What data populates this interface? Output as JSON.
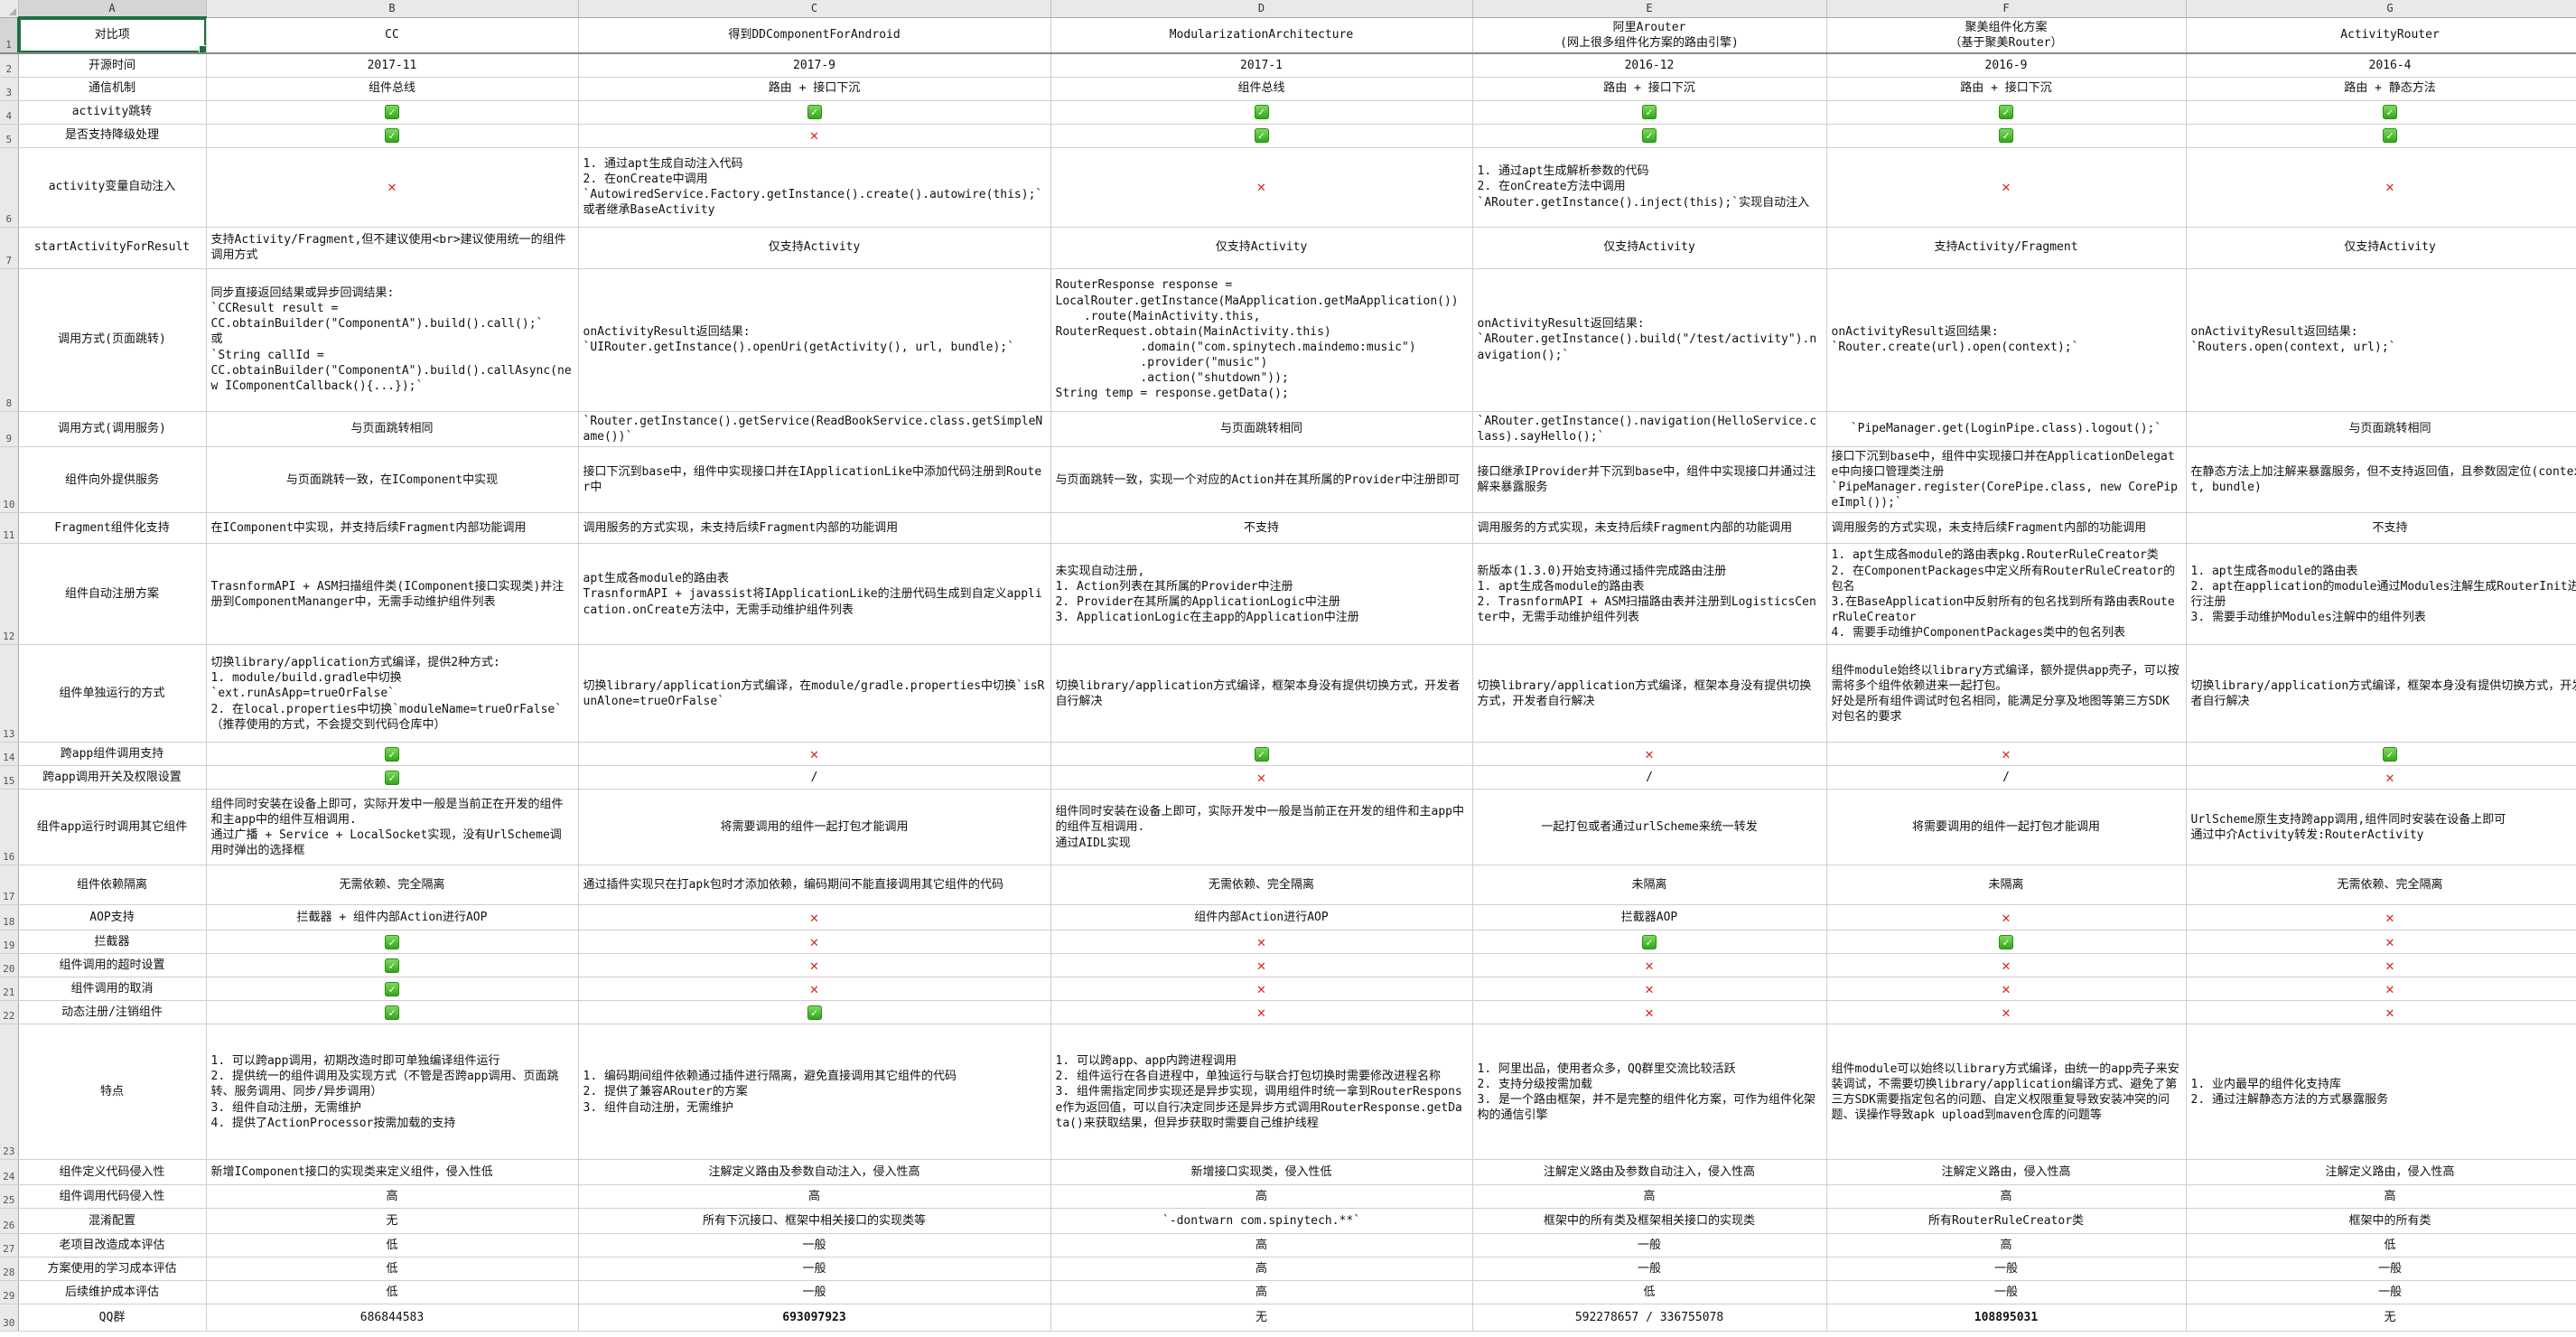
{
  "colors": {
    "check_green": "#2fa316",
    "cross_red": "#d42a1e",
    "selection_green": "#1e7145"
  },
  "sheet": {
    "selected_cell": "A1",
    "col_letters": [
      "A",
      "B",
      "C",
      "D",
      "E",
      "F",
      "G"
    ],
    "rows": [
      {
        "n": 1,
        "label": "对比项",
        "cells": [
          {
            "t": "CC"
          },
          {
            "t": "得到DDComponentForAndroid"
          },
          {
            "t": "ModularizationArchitecture"
          },
          {
            "t": "阿里Arouter\n(网上很多组件化方案的路由引擎)"
          },
          {
            "t": "聚美组件化方案\n（基于聚美Router）"
          },
          {
            "t": "ActivityRouter"
          }
        ]
      },
      {
        "n": 2,
        "label": "开源时间",
        "cells": [
          {
            "t": "2017-11"
          },
          {
            "t": "2017-9"
          },
          {
            "t": "2017-1"
          },
          {
            "t": "2016-12"
          },
          {
            "t": "2016-9"
          },
          {
            "t": "2016-4"
          }
        ]
      },
      {
        "n": 3,
        "label": "通信机制",
        "cells": [
          {
            "t": "组件总线"
          },
          {
            "t": "路由 + 接口下沉"
          },
          {
            "t": "组件总线"
          },
          {
            "t": "路由 + 接口下沉"
          },
          {
            "t": "路由 + 接口下沉"
          },
          {
            "t": "路由 + 静态方法"
          }
        ]
      },
      {
        "n": 4,
        "label": "activity跳转",
        "cells": [
          {
            "i": "check"
          },
          {
            "i": "check"
          },
          {
            "i": "check"
          },
          {
            "i": "check"
          },
          {
            "i": "check"
          },
          {
            "i": "check"
          }
        ]
      },
      {
        "n": 5,
        "label": "是否支持降级处理",
        "cells": [
          {
            "i": "check"
          },
          {
            "i": "cross"
          },
          {
            "i": "check"
          },
          {
            "i": "check"
          },
          {
            "i": "check"
          },
          {
            "i": "check"
          }
        ]
      },
      {
        "n": 6,
        "label": "activity变量自动注入",
        "cells": [
          {
            "i": "cross"
          },
          {
            "t": "1. 通过apt生成自动注入代码\n2. 在onCreate中调用\n`AutowiredService.Factory.getInstance().create().autowire(this);`或者继承BaseActivity"
          },
          {
            "i": "cross"
          },
          {
            "t": "1. 通过apt生成解析参数的代码\n2. 在onCreate方法中调用\n`ARouter.getInstance().inject(this);`实现自动注入"
          },
          {
            "i": "cross"
          },
          {
            "i": "cross"
          }
        ]
      },
      {
        "n": 7,
        "label": "startActivityForResult",
        "cells": [
          {
            "t": "支持Activity/Fragment,但不建议使用<br>建议使用统一的组件调用方式"
          },
          {
            "t": "仅支持Activity"
          },
          {
            "t": "仅支持Activity"
          },
          {
            "t": "仅支持Activity"
          },
          {
            "t": "支持Activity/Fragment"
          },
          {
            "t": "仅支持Activity"
          }
        ]
      },
      {
        "n": 8,
        "label": "调用方式(页面跳转)",
        "cells": [
          {
            "t": "同步直接返回结果或异步回调结果:\n`CCResult result =\nCC.obtainBuilder(\"ComponentA\").build().call();`\n或\n`String callId =\nCC.obtainBuilder(\"ComponentA\").build().callAsync(new IComponentCallback(){...});`"
          },
          {
            "t": "onActivityResult返回结果:\n`UIRouter.getInstance().openUri(getActivity(), url, bundle);`"
          },
          {
            "t": "RouterResponse response =\nLocalRouter.getInstance(MaApplication.getMaApplication())\n    .route(MainActivity.this,\nRouterRequest.obtain(MainActivity.this)\n            .domain(\"com.spinytech.maindemo:music\")\n            .provider(\"music\")\n            .action(\"shutdown\"));\nString temp = response.getData();"
          },
          {
            "t": "onActivityResult返回结果:\n`ARouter.getInstance().build(\"/test/activity\").navigation();`"
          },
          {
            "t": "onActivityResult返回结果:\n`Router.create(url).open(context);`"
          },
          {
            "t": "onActivityResult返回结果:\n`Routers.open(context, url);`"
          }
        ]
      },
      {
        "n": 9,
        "label": "调用方式(调用服务)",
        "cells": [
          {
            "t": "与页面跳转相同"
          },
          {
            "t": "`Router.getInstance().getService(ReadBookService.class.getSimpleName())`"
          },
          {
            "t": "与页面跳转相同"
          },
          {
            "t": "`ARouter.getInstance().navigation(HelloService.class).sayHello();`"
          },
          {
            "t": "`PipeManager.get(LoginPipe.class).logout();`",
            "a": "c"
          },
          {
            "t": "与页面跳转相同"
          }
        ]
      },
      {
        "n": 10,
        "label": "组件向外提供服务",
        "cells": [
          {
            "t": "与页面跳转一致，在IComponent中实现"
          },
          {
            "t": "接口下沉到base中，组件中实现接口并在IApplicationLike中添加代码注册到Router中"
          },
          {
            "t": "与页面跳转一致，实现一个对应的Action并在其所属的Provider中注册即可"
          },
          {
            "t": "接口继承IProvider并下沉到base中，组件中实现接口并通过注解来暴露服务"
          },
          {
            "t": "接口下沉到base中，组件中实现接口并在ApplicationDelegate中向接口管理类注册\n`PipeManager.register(CorePipe.class, new CorePipeImpl());`"
          },
          {
            "t": "在静态方法上加注解来暴露服务，但不支持返回值，且参数固定位(context, bundle)"
          }
        ]
      },
      {
        "n": 11,
        "label": "Fragment组件化支持",
        "cells": [
          {
            "t": "在IComponent中实现，并支持后续Fragment内部功能调用"
          },
          {
            "t": "调用服务的方式实现，未支持后续Fragment内部的功能调用"
          },
          {
            "t": "不支持"
          },
          {
            "t": "调用服务的方式实现，未支持后续Fragment内部的功能调用"
          },
          {
            "t": "调用服务的方式实现，未支持后续Fragment内部的功能调用"
          },
          {
            "t": "不支持"
          }
        ]
      },
      {
        "n": 12,
        "label": "组件自动注册方案",
        "cells": [
          {
            "t": "TrasnformAPI + ASM扫描组件类(IComponent接口实现类)并注册到ComponentMananger中，无需手动维护组件列表"
          },
          {
            "t": "apt生成各module的路由表\nTrasnformAPI + javassist将IApplicationLike的注册代码生成到自定义application.onCreate方法中，无需手动维护组件列表"
          },
          {
            "t": "未实现自动注册,\n1. Action列表在其所属的Provider中注册\n2. Provider在其所属的ApplicationLogic中注册\n3. ApplicationLogic在主app的Application中注册"
          },
          {
            "t": "新版本(1.3.0)开始支持通过插件完成路由注册\n1. apt生成各module的路由表\n2. TrasnformAPI + ASM扫描路由表并注册到LogisticsCenter中，无需手动维护组件列表"
          },
          {
            "t": "1. apt生成各module的路由表pkg.RouterRuleCreator类\n2. 在ComponentPackages中定义所有RouterRuleCreator的包名\n3.在BaseApplication中反射所有的包名找到所有路由表RouterRuleCreator\n4. 需要手动维护ComponentPackages类中的包名列表"
          },
          {
            "t": "1. apt生成各module的路由表\n2. apt在application的module通过Modules注解生成RouterInit进行注册\n3. 需要手动维护Modules注解中的组件列表"
          }
        ]
      },
      {
        "n": 13,
        "label": "组件单独运行的方式",
        "cells": [
          {
            "t": "切换library/application方式编译，提供2种方式:\n1. module/build.gradle中切换\n`ext.runAsApp=trueOrFalse`\n2. 在local.properties中切换`moduleName=trueOrFalse`\n（推荐使用的方式，不会提交到代码仓库中）"
          },
          {
            "t": "切换library/application方式编译，在module/gradle.properties中切换`isRunAlone=trueOrFalse`"
          },
          {
            "t": "切换library/application方式编译，框架本身没有提供切换方式，开发者自行解决"
          },
          {
            "t": "切换library/application方式编译，框架本身没有提供切换方式，开发者自行解决"
          },
          {
            "t": "组件module始终以library方式编译，额外提供app壳子，可以按需将多个组件依赖进来一起打包。\n好处是所有组件调试时包名相同，能满足分享及地图等第三方SDK对包名的要求"
          },
          {
            "t": "切换library/application方式编译，框架本身没有提供切换方式，开发者自行解决"
          }
        ]
      },
      {
        "n": 14,
        "label": "跨app组件调用支持",
        "cells": [
          {
            "i": "check"
          },
          {
            "i": "cross"
          },
          {
            "i": "check"
          },
          {
            "i": "cross"
          },
          {
            "i": "cross"
          },
          {
            "i": "check"
          }
        ]
      },
      {
        "n": 15,
        "label": "跨app调用开关及权限设置",
        "cells": [
          {
            "i": "check"
          },
          {
            "t": "/"
          },
          {
            "i": "cross"
          },
          {
            "t": "/"
          },
          {
            "t": "/"
          },
          {
            "i": "cross"
          }
        ]
      },
      {
        "n": 16,
        "label": "组件app运行时调用其它组件",
        "cells": [
          {
            "t": "组件同时安装在设备上即可，实际开发中一般是当前正在开发的组件和主app中的组件互相调用.\n通过广播 + Service + LocalSocket实现，没有UrlScheme调用时弹出的选择框"
          },
          {
            "t": "将需要调用的组件一起打包才能调用"
          },
          {
            "t": "组件同时安装在设备上即可，实际开发中一般是当前正在开发的组件和主app中的组件互相调用.\n通过AIDL实现"
          },
          {
            "t": "一起打包或者通过urlScheme来统一转发"
          },
          {
            "t": "将需要调用的组件一起打包才能调用"
          },
          {
            "t": "UrlScheme原生支持跨app调用,组件同时安装在设备上即可\n通过中介Activity转发:RouterActivity"
          }
        ]
      },
      {
        "n": 17,
        "label": "组件依赖隔离",
        "cells": [
          {
            "t": "无需依赖、完全隔离"
          },
          {
            "t": "通过插件实现只在打apk包时才添加依赖，编码期间不能直接调用其它组件的代码"
          },
          {
            "t": "无需依赖、完全隔离"
          },
          {
            "t": "未隔离"
          },
          {
            "t": "未隔离"
          },
          {
            "t": "无需依赖、完全隔离"
          }
        ]
      },
      {
        "n": 18,
        "label": "AOP支持",
        "cells": [
          {
            "t": "拦截器 + 组件内部Action进行AOP"
          },
          {
            "i": "cross"
          },
          {
            "t": "组件内部Action进行AOP"
          },
          {
            "t": "拦截器AOP"
          },
          {
            "i": "cross"
          },
          {
            "i": "cross"
          }
        ]
      },
      {
        "n": 19,
        "label": "拦截器",
        "cells": [
          {
            "i": "check"
          },
          {
            "i": "cross"
          },
          {
            "i": "cross"
          },
          {
            "i": "check"
          },
          {
            "i": "check"
          },
          {
            "i": "cross"
          }
        ]
      },
      {
        "n": 20,
        "label": "组件调用的超时设置",
        "cells": [
          {
            "i": "check"
          },
          {
            "i": "cross"
          },
          {
            "i": "cross"
          },
          {
            "i": "cross"
          },
          {
            "i": "cross"
          },
          {
            "i": "cross"
          }
        ]
      },
      {
        "n": 21,
        "label": "组件调用的取消",
        "cells": [
          {
            "i": "check"
          },
          {
            "i": "cross"
          },
          {
            "i": "cross"
          },
          {
            "i": "cross"
          },
          {
            "i": "cross"
          },
          {
            "i": "cross"
          }
        ]
      },
      {
        "n": 22,
        "label": "动态注册/注销组件",
        "cells": [
          {
            "i": "check"
          },
          {
            "i": "check"
          },
          {
            "i": "cross"
          },
          {
            "i": "cross"
          },
          {
            "i": "cross"
          },
          {
            "i": "cross"
          }
        ]
      },
      {
        "n": 23,
        "label": "特点",
        "cells": [
          {
            "t": "1. 可以跨app调用，初期改造时即可单独编译组件运行\n2. 提供统一的组件调用及实现方式（不管是否跨app调用、页面跳转、服务调用、同步/异步调用）\n3. 组件自动注册，无需维护\n4. 提供了ActionProcessor按需加载的支持"
          },
          {
            "t": "1. 编码期间组件依赖通过插件进行隔离，避免直接调用其它组件的代码\n2. 提供了兼容ARouter的方案\n3. 组件自动注册，无需维护"
          },
          {
            "t": "1. 可以跨app、app内跨进程调用\n2. 组件运行在各自进程中，单独运行与联合打包切换时需要修改进程名称\n3. 组件需指定同步实现还是异步实现，调用组件时统一拿到RouterResponse作为返回值，可以自行决定同步还是异步方式调用RouterResponse.getData()来获取结果，但异步获取时需要自己维护线程"
          },
          {
            "t": "1. 阿里出品，使用者众多，QQ群里交流比较活跃\n2. 支持分级按需加载\n3. 是一个路由框架，并不是完整的组件化方案，可作为组件化架构的通信引擎"
          },
          {
            "t": "组件module可以始终以library方式编译，由统一的app壳子来安装调试，不需要切换library/application编译方式、避免了第三方SDK需要指定包名的问题、自定义权限重复导致安装冲突的问题、误操作导致apk upload到maven仓库的问题等"
          },
          {
            "t": "1. 业内最早的组件化支持库\n2. 通过注解静态方法的方式暴露服务"
          }
        ]
      },
      {
        "n": 24,
        "label": "组件定义代码侵入性",
        "cells": [
          {
            "t": "新增IComponent接口的实现类来定义组件，侵入性低"
          },
          {
            "t": "注解定义路由及参数自动注入，侵入性高"
          },
          {
            "t": "新增接口实现类，侵入性低"
          },
          {
            "t": "注解定义路由及参数自动注入，侵入性高"
          },
          {
            "t": "注解定义路由，侵入性高"
          },
          {
            "t": "注解定义路由，侵入性高"
          }
        ]
      },
      {
        "n": 25,
        "label": "组件调用代码侵入性",
        "cells": [
          {
            "t": "高"
          },
          {
            "t": "高"
          },
          {
            "t": "高"
          },
          {
            "t": "高"
          },
          {
            "t": "高"
          },
          {
            "t": "高"
          }
        ]
      },
      {
        "n": 26,
        "label": "混淆配置",
        "cells": [
          {
            "t": "无"
          },
          {
            "t": "所有下沉接口、框架中相关接口的实现类等"
          },
          {
            "t": "`-dontwarn com.spinytech.**`",
            "a": "c"
          },
          {
            "t": "框架中的所有类及框架相关接口的实现类"
          },
          {
            "t": "所有RouterRuleCreator类"
          },
          {
            "t": "框架中的所有类"
          }
        ]
      },
      {
        "n": 27,
        "label": "老项目改造成本评估",
        "cells": [
          {
            "t": "低"
          },
          {
            "t": "一般"
          },
          {
            "t": "高"
          },
          {
            "t": "一般"
          },
          {
            "t": "高"
          },
          {
            "t": "低"
          }
        ]
      },
      {
        "n": 28,
        "label": "方案使用的学习成本评估",
        "cells": [
          {
            "t": "低"
          },
          {
            "t": "一般"
          },
          {
            "t": "高"
          },
          {
            "t": "一般"
          },
          {
            "t": "一般"
          },
          {
            "t": "一般"
          }
        ]
      },
      {
        "n": 29,
        "label": "后续维护成本评估",
        "cells": [
          {
            "t": "低"
          },
          {
            "t": "一般"
          },
          {
            "t": "高"
          },
          {
            "t": "低"
          },
          {
            "t": "一般"
          },
          {
            "t": "一般"
          }
        ]
      },
      {
        "n": 30,
        "label": "QQ群",
        "cells": [
          {
            "t": "686844583"
          },
          {
            "t": "693097923",
            "b": 1
          },
          {
            "t": "无"
          },
          {
            "t": "592278657 / 336755078"
          },
          {
            "t": "108895031",
            "b": 1
          },
          {
            "t": "无"
          }
        ]
      }
    ]
  }
}
